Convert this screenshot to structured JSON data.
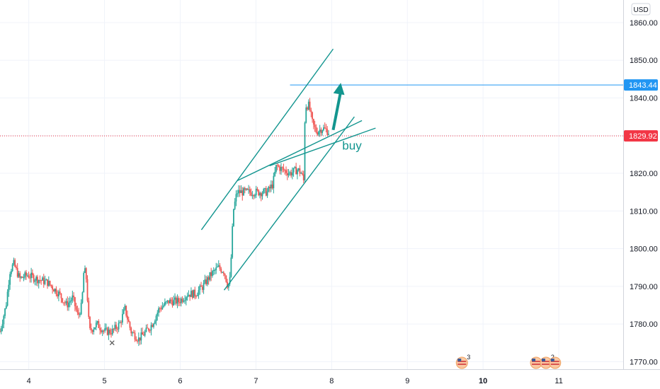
{
  "currency_label": "USD",
  "chart_data": {
    "type": "candlestick",
    "title": "",
    "xlabel": "",
    "ylabel": "",
    "ylim": [
      1768,
      1866
    ],
    "xlim": [
      3.62,
      11.85
    ],
    "y_ticks": [
      1770,
      1780,
      1790,
      1800,
      1810,
      1820,
      1830,
      1840,
      1850,
      1860
    ],
    "y_tick_labels": [
      "1770.00",
      "1780.00",
      "1790.00",
      "1800.00",
      "1810.00",
      "1820.00",
      "1830.00",
      "1840.00",
      "1850.00",
      "1860.00"
    ],
    "x_ticks": [
      {
        "value": 4,
        "label": "4",
        "bold": false
      },
      {
        "value": 5,
        "label": "5",
        "bold": false
      },
      {
        "value": 6,
        "label": "6",
        "bold": false
      },
      {
        "value": 7,
        "label": "7",
        "bold": false
      },
      {
        "value": 8,
        "label": "8",
        "bold": false
      },
      {
        "value": 9,
        "label": "9",
        "bold": false
      },
      {
        "value": 10,
        "label": "10",
        "bold": true
      },
      {
        "value": 11,
        "label": "11",
        "bold": false
      }
    ],
    "candle_anchors": [
      [
        3.62,
        1778
      ],
      [
        3.7,
        1785
      ],
      [
        3.75,
        1794
      ],
      [
        3.8,
        1796
      ],
      [
        3.88,
        1792
      ],
      [
        3.98,
        1793
      ],
      [
        4.1,
        1792
      ],
      [
        4.25,
        1791
      ],
      [
        4.4,
        1788
      ],
      [
        4.5,
        1785
      ],
      [
        4.58,
        1787
      ],
      [
        4.65,
        1782
      ],
      [
        4.7,
        1785
      ],
      [
        4.73,
        1795
      ],
      [
        4.76,
        1792
      ],
      [
        4.8,
        1778
      ],
      [
        4.9,
        1780
      ],
      [
        5.0,
        1778
      ],
      [
        5.1,
        1778
      ],
      [
        5.2,
        1780
      ],
      [
        5.27,
        1784
      ],
      [
        5.35,
        1778
      ],
      [
        5.45,
        1776
      ],
      [
        5.55,
        1778
      ],
      [
        5.63,
        1780
      ],
      [
        5.72,
        1784
      ],
      [
        5.85,
        1786
      ],
      [
        5.98,
        1786
      ],
      [
        6.1,
        1788
      ],
      [
        6.2,
        1788
      ],
      [
        6.3,
        1790
      ],
      [
        6.4,
        1793
      ],
      [
        6.5,
        1795
      ],
      [
        6.58,
        1794
      ],
      [
        6.63,
        1790
      ],
      [
        6.66,
        1792
      ],
      [
        6.7,
        1810
      ],
      [
        6.75,
        1815
      ],
      [
        6.85,
        1815
      ],
      [
        6.95,
        1815
      ],
      [
        7.05,
        1815
      ],
      [
        7.15,
        1815
      ],
      [
        7.22,
        1817
      ],
      [
        7.27,
        1822
      ],
      [
        7.35,
        1821
      ],
      [
        7.45,
        1820
      ],
      [
        7.55,
        1821
      ],
      [
        7.6,
        1820
      ],
      [
        7.63,
        1818
      ],
      [
        7.65,
        1838
      ],
      [
        7.7,
        1838
      ],
      [
        7.75,
        1833
      ],
      [
        7.8,
        1831
      ],
      [
        7.88,
        1832
      ],
      [
        7.96,
        1831
      ]
    ],
    "overlays": {
      "horizontal_line_value": 1843.44,
      "current_price_value": 1829.92,
      "trendlines": [
        {
          "name": "channel-upper-line",
          "from": [
            6.28,
            1805
          ],
          "to": [
            8.02,
            1853
          ]
        },
        {
          "name": "channel-lower-line",
          "from": [
            6.58,
            1789
          ],
          "to": [
            8.3,
            1835
          ]
        },
        {
          "name": "wedge-upper-line",
          "from": [
            6.75,
            1818
          ],
          "to": [
            8.4,
            1834
          ]
        },
        {
          "name": "wedge-lower-line",
          "from": [
            7.18,
            1822
          ],
          "to": [
            8.58,
            1832
          ]
        }
      ],
      "arrow": {
        "from": [
          8.02,
          1831.5
        ],
        "to": [
          8.12,
          1844
        ]
      },
      "annotation_anchor": [
        8.14,
        1827
      ]
    },
    "price_tags": [
      {
        "value": 1843.44,
        "label": "1843.44",
        "color": "#2196f3"
      },
      {
        "value": 1829.92,
        "label": "1829.92",
        "color": "#f23645"
      }
    ],
    "annotation_text": "buy",
    "x_mark_at": [
      5.1,
      1775
    ],
    "grid": true,
    "colors": {
      "up": "#26a69a",
      "down": "#ef5350",
      "drawing": "#12958f",
      "horizontal_line": "#2196f3",
      "current_price": "#f23645",
      "grid": "#f0f3fa"
    },
    "events": [
      {
        "x": 9.72,
        "badge": "3"
      },
      {
        "x": 10.7,
        "badge": ""
      },
      {
        "x": 10.83,
        "badge": "2"
      },
      {
        "x": 10.95,
        "badge": ""
      }
    ]
  }
}
